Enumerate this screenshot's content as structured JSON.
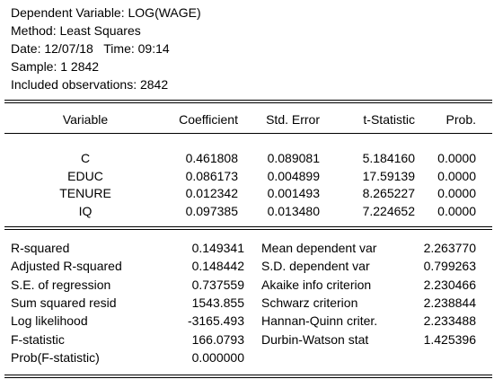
{
  "header": [
    "Dependent Variable: LOG(WAGE)",
    "Method: Least Squares",
    "Date: 12/07/18   Time: 09:14",
    "Sample: 1 2842",
    "Included observations: 2842"
  ],
  "table": {
    "columns": [
      "Variable",
      "Coefficient",
      "Std. Error",
      "t-Statistic",
      "Prob."
    ],
    "rows": [
      [
        "C",
        "0.461808",
        "0.089081",
        "5.184160",
        "0.0000"
      ],
      [
        "EDUC",
        "0.086173",
        "0.004899",
        "17.59139",
        "0.0000"
      ],
      [
        "TENURE",
        "0.012342",
        "0.001493",
        "8.265227",
        "0.0000"
      ],
      [
        "IQ",
        "0.097385",
        "0.013480",
        "7.224652",
        "0.0000"
      ]
    ]
  },
  "stats": {
    "rows": [
      [
        "R-squared",
        "0.149341",
        "Mean dependent var",
        "2.263770"
      ],
      [
        "Adjusted R-squared",
        "0.148442",
        "S.D. dependent var",
        "0.799263"
      ],
      [
        "S.E. of regression",
        "0.737559",
        "Akaike info criterion",
        "2.230466"
      ],
      [
        "Sum squared resid",
        "1543.855",
        "Schwarz criterion",
        "2.238844"
      ],
      [
        "Log likelihood",
        "-3165.493",
        "Hannan-Quinn criter.",
        "2.233488"
      ],
      [
        "F-statistic",
        "166.0793",
        "Durbin-Watson stat",
        "1.425396"
      ],
      [
        "Prob(F-statistic)",
        "0.000000"
      ]
    ]
  }
}
